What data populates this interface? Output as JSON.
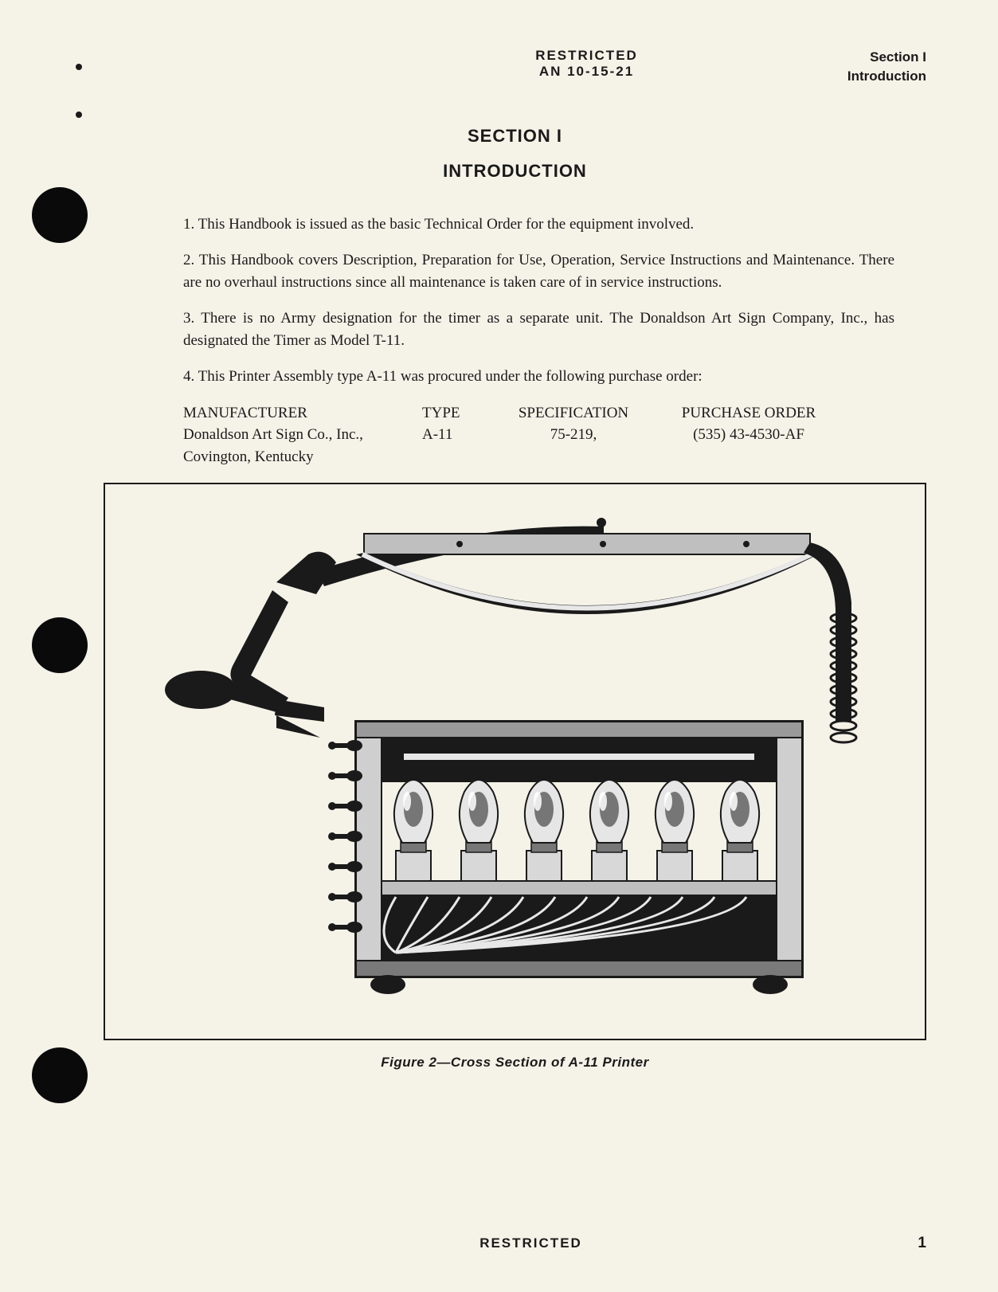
{
  "header": {
    "classification": "RESTRICTED",
    "doc_number": "AN 10-15-21",
    "section_label": "Section I",
    "section_name": "Introduction"
  },
  "section": {
    "heading_line1": "SECTION I",
    "heading_line2": "INTRODUCTION"
  },
  "paragraphs": {
    "p1": "1.  This Handbook is issued as the basic Technical Order for the equipment involved.",
    "p2": "2.  This Handbook covers Description, Preparation for Use, Operation, Service Instructions and Maintenance.  There are no overhaul instructions since all maintenance is taken care of in service instructions.",
    "p3": "3.  There is no Army designation for the timer as a separate unit.  The Donaldson Art Sign Company, Inc., has designated the Timer as Model T-11.",
    "p4": "4.  This Printer Assembly type A-11 was procured under the following purchase order:"
  },
  "purchase_table": {
    "headers": {
      "manufacturer": "MANUFACTURER",
      "type": "TYPE",
      "specification": "SPECIFICATION",
      "purchase_order": "PURCHASE ORDER"
    },
    "row": {
      "manufacturer_line1": "Donaldson Art Sign Co., Inc.,",
      "manufacturer_line2": "Covington, Kentucky",
      "type": "A-11",
      "specification": "75-219,",
      "purchase_order": "(535) 43-4530-AF"
    }
  },
  "figure": {
    "caption": "Figure 2—Cross Section of A-11 Printer",
    "type": "technical-illustration",
    "description": "Cross section of A-11 Printer showing hinged arm/lamp housing assembly with handle on left, spring mechanism on right, and main cabinet body below containing six light bulbs in a row, with toggle switches on left side and wiring visible at bottom",
    "colors": {
      "ink": "#1a1a1a",
      "paper": "#f5f2e8",
      "mid": "#888",
      "light": "#ccc"
    },
    "bulb_count": 6
  },
  "footer": {
    "classification": "RESTRICTED",
    "page_number": "1"
  }
}
